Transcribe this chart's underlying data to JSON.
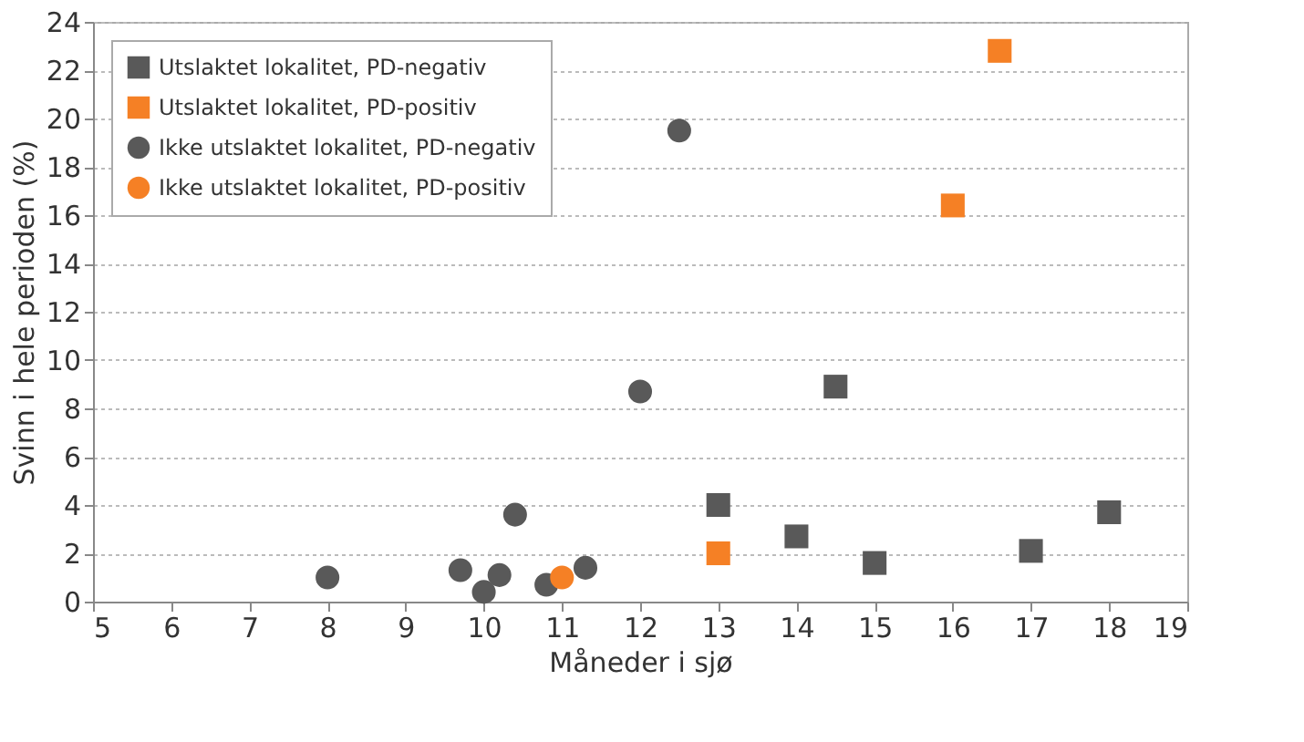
{
  "chart_data": {
    "type": "scatter",
    "xlabel": "Måneder i sjø",
    "ylabel": "Svinn i hele perioden (%)",
    "xlim": [
      5,
      19
    ],
    "xticks": [
      5,
      6,
      7,
      8,
      9,
      10,
      11,
      12,
      13,
      14,
      15,
      16,
      17,
      18,
      19
    ],
    "ylim": [
      0,
      24
    ],
    "yticks": [
      0,
      2,
      4,
      6,
      8,
      10,
      12,
      14,
      16,
      18,
      20,
      22,
      24
    ],
    "grid": "y",
    "legend": "top left",
    "series": [
      {
        "name": "Utslaktet lokalitet, PD-negativ",
        "color": "#595959",
        "marker": "square",
        "x": [
          13,
          14,
          14.5,
          15,
          17,
          18
        ],
        "values": [
          4.0,
          2.7,
          8.9,
          1.6,
          2.1,
          3.7
        ]
      },
      {
        "name": "Utslaktet lokalitet, PD-positiv",
        "color": "#f58025",
        "marker": "square",
        "x": [
          13,
          16,
          16.6
        ],
        "values": [
          2.0,
          16.4,
          22.8
        ]
      },
      {
        "name": "Ikke utslaktet lokalitet, PD-negativ",
        "color": "#595959",
        "marker": "circle",
        "x": [
          8,
          9.7,
          10,
          10.2,
          10.4,
          10.8,
          11.3,
          12,
          12.5
        ],
        "values": [
          1.0,
          1.3,
          0.4,
          1.1,
          3.6,
          0.7,
          1.4,
          8.7,
          19.5
        ]
      },
      {
        "name": "Ikke utslaktet lokalitet, PD-positiv",
        "color": "#f58025",
        "marker": "circle",
        "x": [
          11
        ],
        "values": [
          1.0
        ]
      }
    ]
  }
}
